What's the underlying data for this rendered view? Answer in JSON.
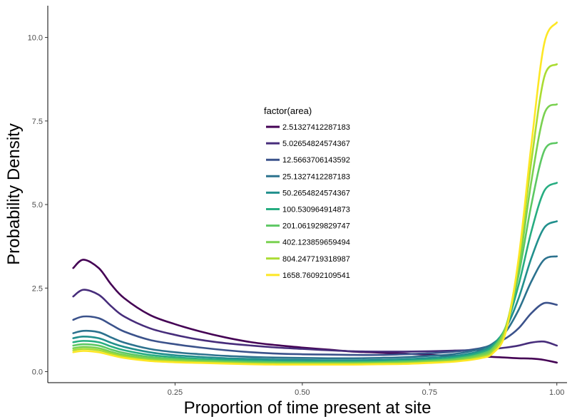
{
  "chart_data": {
    "type": "line",
    "xlabel": "Proportion of time present at site",
    "ylabel": "Probability Density",
    "xlim": [
      0.0,
      1.02
    ],
    "ylim": [
      -0.33,
      10.95
    ],
    "x_ticks": [
      0.25,
      0.5,
      0.75,
      1.0
    ],
    "x_tick_labels": [
      "0.25",
      "0.50",
      "0.75",
      "1.00"
    ],
    "y_ticks": [
      0.0,
      2.5,
      5.0,
      7.5,
      10.0
    ],
    "y_tick_labels": [
      "0.0",
      "2.5",
      "5.0",
      "7.5",
      "10.0"
    ],
    "grid": false,
    "legend": {
      "title": "factor(area)",
      "placement": "inside-center"
    },
    "series": [
      {
        "name": "2.51327412287183",
        "color": "#440154",
        "x": [
          0.05,
          0.07,
          0.1,
          0.125,
          0.15,
          0.2,
          0.25,
          0.3,
          0.35,
          0.4,
          0.45,
          0.5,
          0.55,
          0.6,
          0.65,
          0.7,
          0.75,
          0.8,
          0.85,
          0.875,
          0.9,
          0.925,
          0.95,
          0.975,
          1.0
        ],
        "y": [
          3.1,
          3.35,
          3.1,
          2.6,
          2.2,
          1.7,
          1.42,
          1.2,
          1.02,
          0.88,
          0.79,
          0.72,
          0.66,
          0.6,
          0.57,
          0.54,
          0.5,
          0.47,
          0.45,
          0.44,
          0.42,
          0.4,
          0.39,
          0.35,
          0.27
        ]
      },
      {
        "name": "5.02654824574367",
        "color": "#472d7b",
        "x": [
          0.05,
          0.07,
          0.1,
          0.125,
          0.15,
          0.2,
          0.25,
          0.3,
          0.35,
          0.4,
          0.45,
          0.5,
          0.55,
          0.6,
          0.65,
          0.7,
          0.75,
          0.8,
          0.85,
          0.875,
          0.9,
          0.925,
          0.95,
          0.975,
          1.0
        ],
        "y": [
          2.25,
          2.45,
          2.3,
          1.95,
          1.65,
          1.3,
          1.1,
          0.95,
          0.85,
          0.78,
          0.72,
          0.68,
          0.64,
          0.61,
          0.6,
          0.6,
          0.61,
          0.63,
          0.65,
          0.68,
          0.72,
          0.78,
          0.87,
          0.9,
          0.78
        ]
      },
      {
        "name": "12.5663706143592",
        "color": "#3b528b",
        "x": [
          0.05,
          0.07,
          0.1,
          0.125,
          0.15,
          0.2,
          0.25,
          0.3,
          0.35,
          0.4,
          0.45,
          0.5,
          0.55,
          0.6,
          0.65,
          0.7,
          0.75,
          0.8,
          0.85,
          0.875,
          0.9,
          0.925,
          0.95,
          0.975,
          1.0
        ],
        "y": [
          1.55,
          1.65,
          1.6,
          1.4,
          1.2,
          0.95,
          0.82,
          0.72,
          0.64,
          0.58,
          0.54,
          0.52,
          0.51,
          0.5,
          0.5,
          0.52,
          0.55,
          0.6,
          0.7,
          0.82,
          1.0,
          1.3,
          1.75,
          2.05,
          2.0
        ]
      },
      {
        "name": "25.1327412287183",
        "color": "#2c728e",
        "x": [
          0.05,
          0.07,
          0.1,
          0.125,
          0.15,
          0.2,
          0.25,
          0.3,
          0.35,
          0.4,
          0.45,
          0.5,
          0.55,
          0.6,
          0.65,
          0.7,
          0.75,
          0.8,
          0.85,
          0.875,
          0.9,
          0.925,
          0.95,
          0.975,
          1.0
        ],
        "y": [
          1.15,
          1.22,
          1.18,
          1.02,
          0.87,
          0.68,
          0.58,
          0.52,
          0.47,
          0.44,
          0.42,
          0.41,
          0.4,
          0.4,
          0.41,
          0.43,
          0.47,
          0.53,
          0.68,
          0.85,
          1.2,
          1.85,
          2.7,
          3.35,
          3.45
        ]
      },
      {
        "name": "50.2654824574367",
        "color": "#21908d",
        "x": [
          0.05,
          0.07,
          0.1,
          0.125,
          0.15,
          0.2,
          0.25,
          0.3,
          0.35,
          0.4,
          0.45,
          0.5,
          0.55,
          0.6,
          0.65,
          0.7,
          0.75,
          0.8,
          0.85,
          0.875,
          0.9,
          0.925,
          0.95,
          0.975,
          1.0
        ],
        "y": [
          1.0,
          1.05,
          1.0,
          0.86,
          0.74,
          0.58,
          0.49,
          0.44,
          0.4,
          0.38,
          0.36,
          0.35,
          0.34,
          0.34,
          0.35,
          0.37,
          0.41,
          0.47,
          0.62,
          0.82,
          1.3,
          2.2,
          3.4,
          4.3,
          4.5
        ]
      },
      {
        "name": "100.530964914873",
        "color": "#27ad81",
        "x": [
          0.05,
          0.07,
          0.1,
          0.125,
          0.15,
          0.2,
          0.25,
          0.3,
          0.35,
          0.4,
          0.45,
          0.5,
          0.55,
          0.6,
          0.65,
          0.7,
          0.75,
          0.8,
          0.85,
          0.875,
          0.9,
          0.925,
          0.95,
          0.975,
          1.0
        ],
        "y": [
          0.88,
          0.92,
          0.88,
          0.75,
          0.64,
          0.5,
          0.43,
          0.38,
          0.35,
          0.33,
          0.31,
          0.3,
          0.3,
          0.3,
          0.31,
          0.33,
          0.36,
          0.42,
          0.57,
          0.78,
          1.35,
          2.6,
          4.2,
          5.4,
          5.65
        ]
      },
      {
        "name": "201.061929829747",
        "color": "#5dc863",
        "x": [
          0.05,
          0.07,
          0.1,
          0.125,
          0.15,
          0.2,
          0.25,
          0.3,
          0.35,
          0.4,
          0.45,
          0.5,
          0.55,
          0.6,
          0.65,
          0.7,
          0.75,
          0.8,
          0.85,
          0.875,
          0.9,
          0.925,
          0.95,
          0.975,
          1.0
        ],
        "y": [
          0.78,
          0.82,
          0.78,
          0.66,
          0.56,
          0.44,
          0.38,
          0.34,
          0.31,
          0.29,
          0.28,
          0.27,
          0.27,
          0.27,
          0.28,
          0.3,
          0.33,
          0.38,
          0.52,
          0.72,
          1.35,
          2.9,
          5.0,
          6.6,
          6.85
        ]
      },
      {
        "name": "402.123859659494",
        "color": "#7ad151",
        "x": [
          0.05,
          0.07,
          0.1,
          0.125,
          0.15,
          0.2,
          0.25,
          0.3,
          0.35,
          0.4,
          0.45,
          0.5,
          0.55,
          0.6,
          0.65,
          0.7,
          0.75,
          0.8,
          0.85,
          0.875,
          0.9,
          0.925,
          0.95,
          0.975,
          1.0
        ],
        "y": [
          0.7,
          0.74,
          0.7,
          0.59,
          0.5,
          0.39,
          0.34,
          0.3,
          0.28,
          0.26,
          0.25,
          0.25,
          0.25,
          0.25,
          0.26,
          0.27,
          0.3,
          0.35,
          0.48,
          0.68,
          1.35,
          3.1,
          5.7,
          7.7,
          8.0
        ]
      },
      {
        "name": "804.247719318987",
        "color": "#aadc32",
        "x": [
          0.05,
          0.07,
          0.1,
          0.125,
          0.15,
          0.2,
          0.25,
          0.3,
          0.35,
          0.4,
          0.45,
          0.5,
          0.55,
          0.6,
          0.65,
          0.7,
          0.75,
          0.8,
          0.85,
          0.875,
          0.9,
          0.925,
          0.95,
          0.975,
          1.0
        ],
        "y": [
          0.64,
          0.68,
          0.64,
          0.54,
          0.45,
          0.35,
          0.31,
          0.28,
          0.26,
          0.24,
          0.23,
          0.23,
          0.23,
          0.23,
          0.24,
          0.25,
          0.28,
          0.32,
          0.44,
          0.62,
          1.3,
          3.3,
          6.3,
          8.8,
          9.2
        ]
      },
      {
        "name": "1658.76092109541",
        "color": "#fde725",
        "x": [
          0.05,
          0.07,
          0.1,
          0.125,
          0.15,
          0.2,
          0.25,
          0.3,
          0.35,
          0.4,
          0.45,
          0.5,
          0.55,
          0.6,
          0.65,
          0.7,
          0.75,
          0.8,
          0.85,
          0.875,
          0.9,
          0.925,
          0.95,
          0.975,
          1.0
        ],
        "y": [
          0.58,
          0.62,
          0.58,
          0.49,
          0.41,
          0.32,
          0.28,
          0.26,
          0.24,
          0.22,
          0.21,
          0.21,
          0.21,
          0.21,
          0.22,
          0.23,
          0.26,
          0.3,
          0.4,
          0.56,
          1.2,
          3.4,
          6.8,
          9.8,
          10.45
        ]
      }
    ]
  }
}
